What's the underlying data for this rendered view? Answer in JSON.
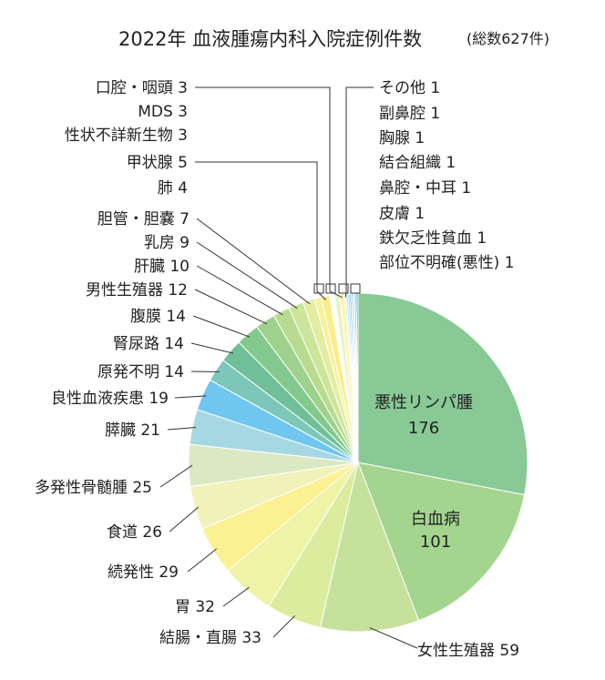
{
  "chart_data": {
    "type": "pie",
    "title": "2022年 血液腫瘍内科入院症例件数",
    "subtitle": "(総数627件)",
    "total": 627,
    "slices": [
      {
        "name": "悪性リンパ腫",
        "value": 176,
        "color": "#88c996"
      },
      {
        "name": "白血病",
        "value": 101,
        "color": "#a4d58f"
      },
      {
        "name": "女性生殖器",
        "value": 59,
        "color": "#c5e19c"
      },
      {
        "name": "結腸・直腸",
        "value": 33,
        "color": "#dbec9f"
      },
      {
        "name": "胃",
        "value": 32,
        "color": "#eef3a6"
      },
      {
        "name": "続発性",
        "value": 29,
        "color": "#fbf192"
      },
      {
        "name": "食道",
        "value": 26,
        "color": "#f1f1ba"
      },
      {
        "name": "多発性骨髄腫",
        "value": 25,
        "color": "#dbe8c4"
      },
      {
        "name": "膵臓",
        "value": 21,
        "color": "#a6d8e3"
      },
      {
        "name": "良性血液疾患",
        "value": 19,
        "color": "#6fc6ee"
      },
      {
        "name": "原発不明",
        "value": 14,
        "color": "#7cc7b9"
      },
      {
        "name": "腎尿路",
        "value": 14,
        "color": "#6fbf98"
      },
      {
        "name": "腹膜",
        "value": 14,
        "color": "#83c98d"
      },
      {
        "name": "男性生殖器",
        "value": 12,
        "color": "#9ed18b"
      },
      {
        "name": "肝臓",
        "value": 10,
        "color": "#b8dc8f"
      },
      {
        "name": "乳房",
        "value": 9,
        "color": "#cde59a"
      },
      {
        "name": "胆管・胆嚢",
        "value": 7,
        "color": "#e3eda2"
      },
      {
        "name": "肺",
        "value": 4,
        "color": "#f6f19a"
      },
      {
        "name": "甲状腺",
        "value": 5,
        "color": "#fbee88"
      },
      {
        "name": "性状不詳新生物",
        "value": 3,
        "color": "#ffffff"
      },
      {
        "name": "MDS",
        "value": 3,
        "color": "#e8f3c4"
      },
      {
        "name": "口腔・咽頭",
        "value": 3,
        "color": "#fdf6b4"
      },
      {
        "name": "その他",
        "value": 1,
        "color": "#cfe9f4"
      },
      {
        "name": "副鼻腔",
        "value": 1,
        "color": "#9fd6ee"
      },
      {
        "name": "胸腺",
        "value": 1,
        "color": "#7ccbe9"
      },
      {
        "name": "結合組織",
        "value": 1,
        "color": "#5fbfe4"
      },
      {
        "name": "鼻腔・中耳",
        "value": 1,
        "color": "#8fd0e6"
      },
      {
        "name": "皮膚",
        "value": 1,
        "color": "#b9e1ee"
      },
      {
        "name": "鉄欠乏性貧血",
        "value": 1,
        "color": "#5bb8de"
      },
      {
        "name": "部位不明確(悪性)",
        "value": 1,
        "color": "#2fa5d4"
      }
    ],
    "label_texts": [
      "悪性リンパ腫",
      "176",
      "白血病",
      "101",
      "女性生殖器 59",
      "結腸・直腸 33",
      "胃 32",
      "続発性 29",
      "食道 26",
      "多発性骨髄腫 25",
      "膵臓 21",
      "良性血液疾患 19",
      "原発不明 14",
      "腎尿路 14",
      "腹膜 14",
      "男性生殖器 12",
      "肝臓 10",
      "乳房 9",
      "胆管・胆嚢 7",
      "肺 4",
      "甲状腺 5",
      "性状不詳新生物 3",
      "MDS 3",
      "口腔・咽頭 3",
      "その他 1",
      "副鼻腔 1",
      "胸腺 1",
      "結合組織 1",
      "鼻腔・中耳 1",
      "皮膚 1",
      "鉄欠乏性貧血 1",
      "部位不明確(悪性) 1"
    ]
  }
}
